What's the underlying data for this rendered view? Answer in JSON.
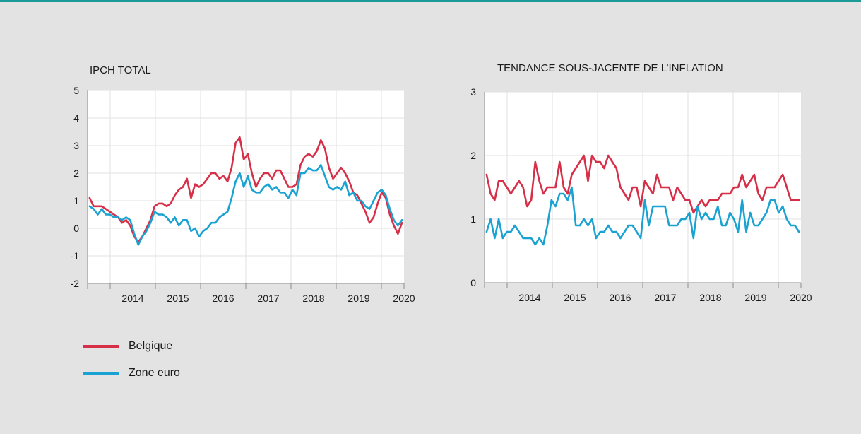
{
  "colors": {
    "accent": "#1b9a98",
    "belgique": "#d62f47",
    "zone_euro": "#1aa3d2",
    "axis": "#8c8c8c",
    "grid": "#ffffff",
    "plot_bg": "#ffffff"
  },
  "legend": [
    {
      "label": "Belgique",
      "color": "#d62f47"
    },
    {
      "label": "Zone euro",
      "color": "#1aa3d2"
    }
  ],
  "chart_data": [
    {
      "type": "line",
      "title": "IPCH TOTAL",
      "xlabel": "",
      "ylabel": "",
      "x_start": 2013.5,
      "x_end": 2020.5,
      "ylim": [
        -2,
        5
      ],
      "yticks": [
        "5",
        "4",
        "3",
        "2",
        "1",
        "0",
        "-1",
        "-2"
      ],
      "year_labels": [
        "2014",
        "2015",
        "2016",
        "2017",
        "2018",
        "2019",
        "2020"
      ],
      "grid": true,
      "series": [
        {
          "name": "Belgique",
          "color": "#d62f47",
          "values": [
            1.1,
            0.8,
            0.8,
            0.8,
            0.7,
            0.6,
            0.5,
            0.4,
            0.2,
            0.3,
            0.1,
            -0.3,
            -0.5,
            -0.3,
            0.0,
            0.3,
            0.8,
            0.9,
            0.9,
            0.8,
            0.9,
            1.2,
            1.4,
            1.5,
            1.8,
            1.1,
            1.6,
            1.5,
            1.6,
            1.8,
            2.0,
            2.0,
            1.8,
            1.9,
            1.7,
            2.2,
            3.1,
            3.3,
            2.5,
            2.7,
            2.0,
            1.5,
            1.8,
            2.0,
            2.0,
            1.8,
            2.1,
            2.1,
            1.8,
            1.5,
            1.5,
            1.6,
            2.3,
            2.6,
            2.7,
            2.6,
            2.8,
            3.2,
            2.9,
            2.2,
            1.8,
            2.0,
            2.2,
            2.0,
            1.7,
            1.3,
            1.2,
            0.9,
            0.6,
            0.2,
            0.4,
            0.9,
            1.3,
            1.1,
            0.5,
            0.1,
            -0.2,
            0.2
          ]
        },
        {
          "name": "Zone euro",
          "color": "#1aa3d2",
          "values": [
            0.8,
            0.7,
            0.5,
            0.7,
            0.5,
            0.5,
            0.4,
            0.4,
            0.3,
            0.4,
            0.3,
            -0.2,
            -0.6,
            -0.3,
            -0.1,
            0.2,
            0.6,
            0.5,
            0.5,
            0.4,
            0.2,
            0.4,
            0.1,
            0.3,
            0.3,
            -0.1,
            0.0,
            -0.3,
            -0.1,
            0.0,
            0.2,
            0.2,
            0.4,
            0.5,
            0.6,
            1.1,
            1.7,
            2.0,
            1.5,
            1.9,
            1.4,
            1.3,
            1.3,
            1.5,
            1.6,
            1.4,
            1.5,
            1.3,
            1.3,
            1.1,
            1.4,
            1.2,
            2.0,
            2.0,
            2.2,
            2.1,
            2.1,
            2.3,
            1.9,
            1.5,
            1.4,
            1.5,
            1.4,
            1.7,
            1.2,
            1.3,
            1.0,
            1.0,
            0.8,
            0.7,
            1.0,
            1.3,
            1.4,
            1.2,
            0.7,
            0.3,
            0.1,
            0.3
          ]
        }
      ]
    },
    {
      "type": "line",
      "title": "TENDANCE SOUS-JACENTE DE L’INFLATION",
      "xlabel": "",
      "ylabel": "",
      "x_start": 2013.5,
      "x_end": 2020.5,
      "ylim": [
        0,
        3
      ],
      "yticks": [
        "3",
        "2",
        "1",
        "0"
      ],
      "year_labels": [
        "2014",
        "2015",
        "2016",
        "2017",
        "2018",
        "2019",
        "2020"
      ],
      "grid": true,
      "series": [
        {
          "name": "Belgique",
          "color": "#d62f47",
          "values": [
            1.7,
            1.4,
            1.3,
            1.6,
            1.6,
            1.5,
            1.4,
            1.5,
            1.6,
            1.5,
            1.2,
            1.3,
            1.9,
            1.6,
            1.4,
            1.5,
            1.5,
            1.5,
            1.9,
            1.5,
            1.4,
            1.7,
            1.8,
            1.9,
            2.0,
            1.6,
            2.0,
            1.9,
            1.9,
            1.8,
            2.0,
            1.9,
            1.8,
            1.5,
            1.4,
            1.3,
            1.5,
            1.5,
            1.2,
            1.6,
            1.5,
            1.4,
            1.7,
            1.5,
            1.5,
            1.5,
            1.3,
            1.5,
            1.4,
            1.3,
            1.3,
            1.1,
            1.2,
            1.3,
            1.2,
            1.3,
            1.3,
            1.3,
            1.4,
            1.4,
            1.4,
            1.5,
            1.5,
            1.7,
            1.5,
            1.6,
            1.7,
            1.4,
            1.3,
            1.5,
            1.5,
            1.5,
            1.6,
            1.7,
            1.5,
            1.3,
            1.3,
            1.3
          ]
        },
        {
          "name": "Zone euro",
          "color": "#1aa3d2",
          "values": [
            0.8,
            1.0,
            0.7,
            1.0,
            0.7,
            0.8,
            0.8,
            0.9,
            0.8,
            0.7,
            0.7,
            0.7,
            0.6,
            0.7,
            0.6,
            0.9,
            1.3,
            1.2,
            1.4,
            1.4,
            1.3,
            1.5,
            0.9,
            0.9,
            1.0,
            0.9,
            1.0,
            0.7,
            0.8,
            0.8,
            0.9,
            0.8,
            0.8,
            0.7,
            0.8,
            0.9,
            0.9,
            0.8,
            0.7,
            1.3,
            0.9,
            1.2,
            1.2,
            1.2,
            1.2,
            0.9,
            0.9,
            0.9,
            1.0,
            1.0,
            1.1,
            0.7,
            1.2,
            1.0,
            1.1,
            1.0,
            1.0,
            1.2,
            0.9,
            0.9,
            1.1,
            1.0,
            0.8,
            1.3,
            0.8,
            1.1,
            0.9,
            0.9,
            1.0,
            1.1,
            1.3,
            1.3,
            1.1,
            1.2,
            1.0,
            0.9,
            0.9,
            0.8
          ]
        }
      ]
    }
  ]
}
